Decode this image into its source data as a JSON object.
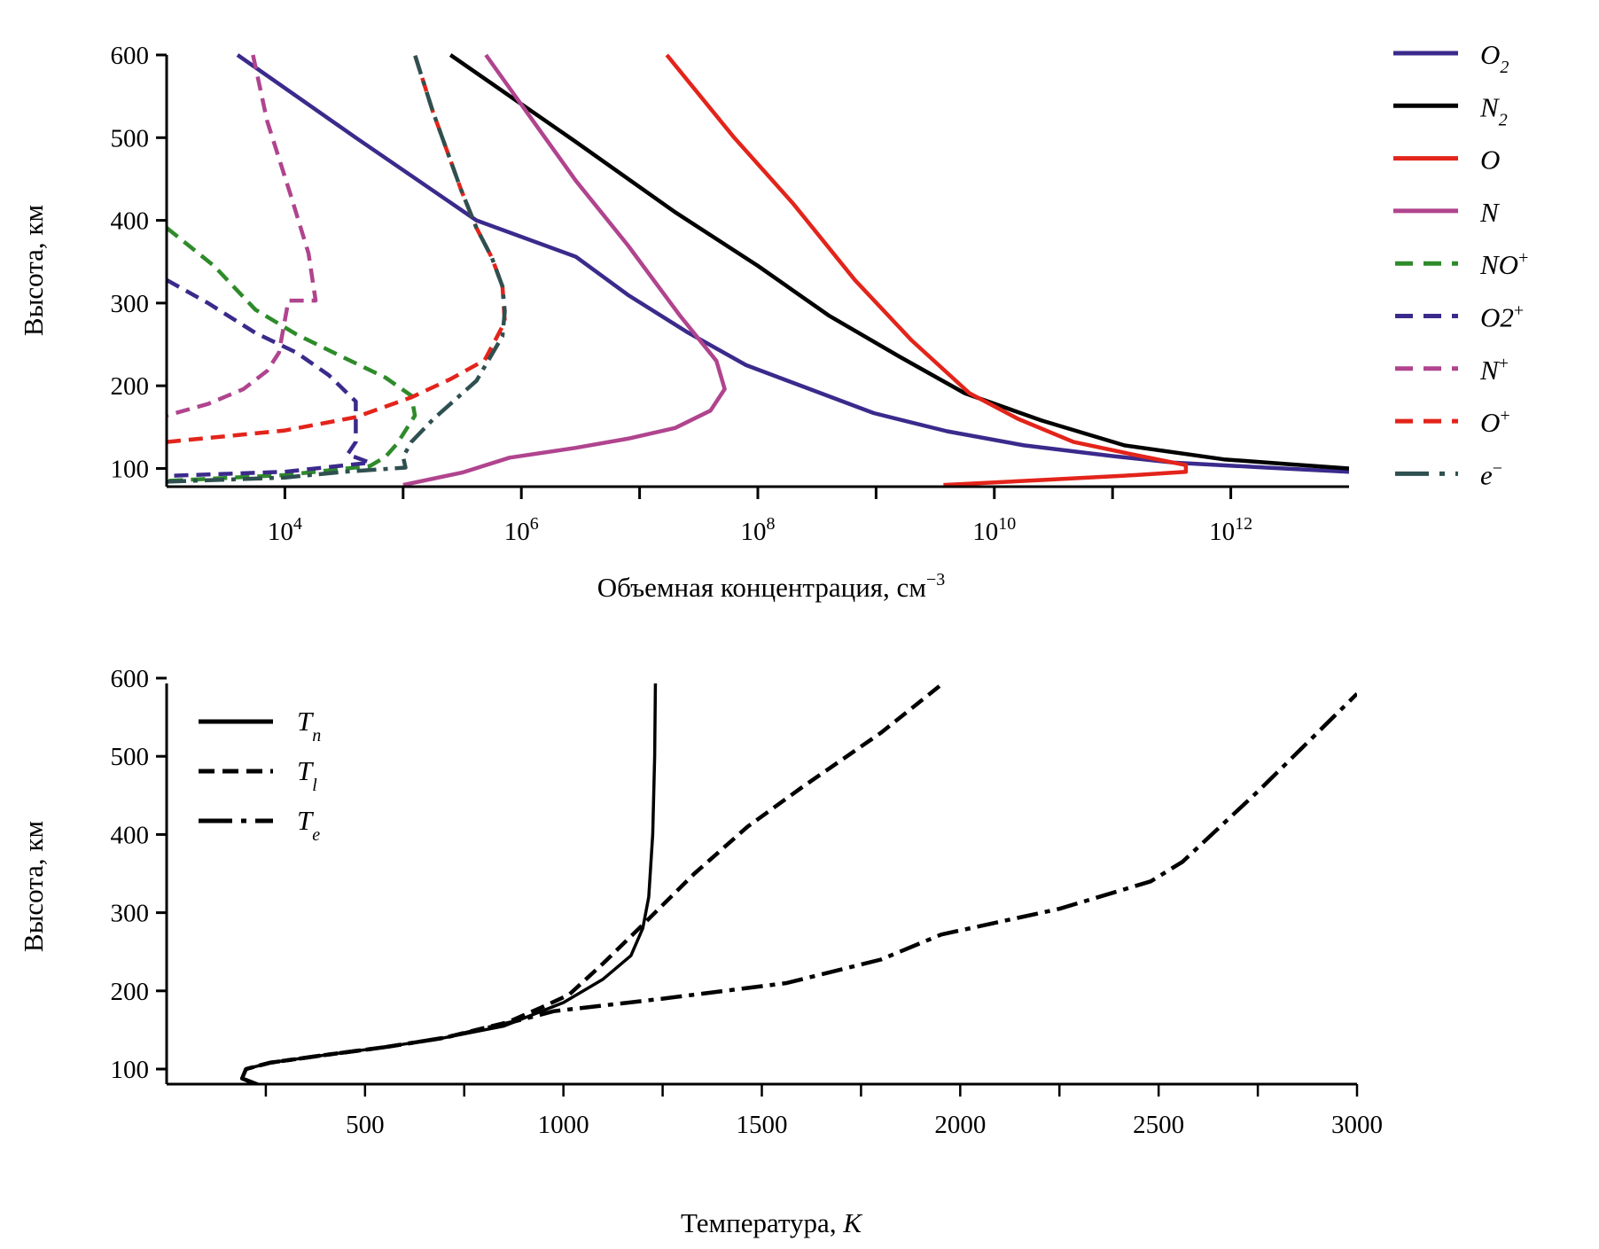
{
  "chart_data": [
    {
      "type": "line",
      "title": "",
      "xlabel": "Объемная концентрация, см",
      "xlabel_superscript": "−3",
      "ylabel": "Высота, км",
      "xscale": "log",
      "xlim": [
        1000,
        10000000000000.0
      ],
      "ylim": [
        78,
        600
      ],
      "xticks": [
        {
          "base": "10",
          "exp": "4",
          "value": 10000.0
        },
        {
          "base": "10",
          "exp": "6",
          "value": 1000000.0
        },
        {
          "base": "10",
          "exp": "8",
          "value": 100000000.0
        },
        {
          "base": "10",
          "exp": "10",
          "value": 10000000000.0
        },
        {
          "base": "10",
          "exp": "12",
          "value": 1000000000000.0
        }
      ],
      "xminor_ticks": [
        1000.0,
        100000.0,
        10000000.0,
        1000000000.0,
        100000000000.0,
        10000000000000.0
      ],
      "yticks": [
        "100",
        "200",
        "300",
        "400",
        "500",
        "600"
      ],
      "grid": false,
      "legend_position": "right-outside",
      "series": [
        {
          "name": "O2",
          "label": "O",
          "sub": "2",
          "sup": "",
          "color": "#3b2a8c",
          "dash": "solid",
          "points": [
            [
              3.6,
              600
            ],
            [
              4.6,
              500
            ],
            [
              5.62,
              400
            ],
            [
              6.46,
              356
            ],
            [
              6.9,
              310
            ],
            [
              7.4,
              265
            ],
            [
              7.9,
              225
            ],
            [
              8.98,
              167
            ],
            [
              9.6,
              145
            ],
            [
              10.25,
              128
            ],
            [
              11.0,
              115
            ],
            [
              11.52,
              107
            ],
            [
              12.3,
              101
            ],
            [
              13.0,
              96
            ]
          ]
        },
        {
          "name": "N2",
          "label": "N",
          "sub": "2",
          "sup": "",
          "color": "#000000",
          "dash": "solid",
          "points": [
            [
              5.4,
              600
            ],
            [
              6.46,
              495
            ],
            [
              7.3,
              410
            ],
            [
              8.0,
              345
            ],
            [
              8.6,
              285
            ],
            [
              9.2,
              235
            ],
            [
              9.75,
              191
            ],
            [
              10.4,
              158
            ],
            [
              11.1,
              128
            ],
            [
              11.94,
              111
            ],
            [
              12.5,
              105
            ],
            [
              13.0,
              100
            ]
          ]
        },
        {
          "name": "O",
          "label": "O",
          "sub": "",
          "sup": "",
          "color": "#e3241b",
          "dash": "solid",
          "points": [
            [
              7.23,
              600
            ],
            [
              7.8,
              500
            ],
            [
              8.3,
              420
            ],
            [
              8.82,
              328
            ],
            [
              9.3,
              255
            ],
            [
              9.79,
              191
            ],
            [
              10.2,
              160
            ],
            [
              10.67,
              132
            ],
            [
              11.2,
              116
            ],
            [
              11.62,
              104
            ],
            [
              11.62,
              96
            ],
            [
              11.2,
              92
            ],
            [
              10.4,
              86
            ],
            [
              9.57,
              80
            ]
          ]
        },
        {
          "name": "N",
          "label": "N",
          "sub": "",
          "sup": "",
          "color": "#b0448e",
          "dash": "solid",
          "points": [
            [
              5.7,
              600
            ],
            [
              6.0,
              540
            ],
            [
              6.46,
              448
            ],
            [
              6.9,
              370
            ],
            [
              7.34,
              285
            ],
            [
              7.65,
              230
            ],
            [
              7.72,
              196
            ],
            [
              7.6,
              170
            ],
            [
              7.3,
              149
            ],
            [
              6.9,
              136
            ],
            [
              6.46,
              125
            ],
            [
              5.9,
              113
            ],
            [
              5.5,
              95
            ],
            [
              5.0,
              80
            ]
          ]
        },
        {
          "name": "NO+",
          "label": "NO",
          "sub": "",
          "sup": "+",
          "color": "#2e8b2a",
          "dash": "dashed",
          "points": [
            [
              3.0,
              391
            ],
            [
              3.4,
              345
            ],
            [
              3.75,
              292
            ],
            [
              4.1,
              262
            ],
            [
              4.5,
              234
            ],
            [
              4.85,
              210
            ],
            [
              5.07,
              188
            ],
            [
              5.1,
              164
            ],
            [
              4.95,
              130
            ],
            [
              4.85,
              114
            ],
            [
              4.72,
              103
            ],
            [
              4.0,
              92
            ],
            [
              3.0,
              85
            ]
          ]
        },
        {
          "name": "O2+",
          "label": "O2",
          "sub": "",
          "sup": "+",
          "color": "#3b2a8c",
          "dash": "dashed",
          "points": [
            [
              3.0,
              328
            ],
            [
              3.35,
              300
            ],
            [
              3.75,
              264
            ],
            [
              4.1,
              240
            ],
            [
              4.37,
              213
            ],
            [
              4.6,
              181
            ],
            [
              4.6,
              167
            ],
            [
              4.6,
              132
            ],
            [
              4.53,
              117
            ],
            [
              4.72,
              107
            ],
            [
              4.0,
              96
            ],
            [
              3.0,
              91
            ]
          ]
        },
        {
          "name": "N+",
          "label": "N",
          "sub": "",
          "sup": "+",
          "color": "#b0448e",
          "dash": "dashed",
          "points": [
            [
              3.73,
              600
            ],
            [
              3.85,
              520
            ],
            [
              4.05,
              430
            ],
            [
              4.2,
              360
            ],
            [
              4.26,
              303
            ],
            [
              4.03,
              303
            ],
            [
              3.95,
              240
            ],
            [
              3.85,
              218
            ],
            [
              3.65,
              196
            ],
            [
              3.35,
              178
            ],
            [
              3.0,
              164
            ]
          ]
        },
        {
          "name": "O+",
          "label": "O",
          "sub": "",
          "sup": "+",
          "color": "#e3241b",
          "dash": "dashed",
          "points": [
            [
              3.0,
              132
            ],
            [
              4.0,
              146
            ],
            [
              4.6,
              162
            ],
            [
              5.07,
              186
            ],
            [
              5.4,
              208
            ],
            [
              5.69,
              231
            ],
            [
              5.86,
              277
            ],
            [
              5.84,
              320
            ],
            [
              5.75,
              355
            ],
            [
              5.62,
              391
            ],
            [
              5.49,
              437
            ],
            [
              5.25,
              532
            ],
            [
              5.1,
              600
            ]
          ]
        },
        {
          "name": "e-",
          "label": "e",
          "sub": "",
          "sup": "−",
          "color": "#2f5050",
          "dash": "dashdot",
          "points": [
            [
              3.0,
              84
            ],
            [
              4.0,
              89
            ],
            [
              4.5,
              96
            ],
            [
              5.02,
              101
            ],
            [
              5.0,
              114
            ],
            [
              5.07,
              132
            ],
            [
              5.25,
              159
            ],
            [
              5.62,
              206
            ],
            [
              5.84,
              260
            ],
            [
              5.86,
              290
            ],
            [
              5.84,
              320
            ],
            [
              5.75,
              355
            ],
            [
              5.62,
              391
            ],
            [
              5.49,
              437
            ],
            [
              5.25,
              532
            ],
            [
              5.1,
              600
            ]
          ]
        }
      ]
    },
    {
      "type": "line",
      "title": "",
      "xlabel": "Температура, ",
      "xlabel_italic": "K",
      "ylabel": "Высота, км",
      "xlim": [
        0,
        3000
      ],
      "ylim": [
        80,
        600
      ],
      "xticks": [
        "500",
        "1000",
        "1500",
        "2000",
        "2500",
        "3000"
      ],
      "xtick_values": [
        500,
        1000,
        1500,
        2000,
        2500,
        3000
      ],
      "xminor_ticks": [
        250,
        750,
        1250,
        1750,
        2250,
        2750
      ],
      "yticks": [
        "100",
        "200",
        "300",
        "400",
        "500",
        "600"
      ],
      "grid": false,
      "legend_position": "top-left",
      "series": [
        {
          "name": "Tn",
          "label": "T",
          "sub": "n",
          "color": "#000000",
          "dash": "solid",
          "points": [
            [
              230,
              80
            ],
            [
              190,
              88
            ],
            [
              200,
              100
            ],
            [
              260,
              108
            ],
            [
              400,
              118
            ],
            [
              550,
              128
            ],
            [
              700,
              140
            ],
            [
              850,
              155
            ],
            [
              1000,
              185
            ],
            [
              1100,
              215
            ],
            [
              1170,
              245
            ],
            [
              1200,
              280
            ],
            [
              1215,
              320
            ],
            [
              1225,
              400
            ],
            [
              1230,
              500
            ],
            [
              1232,
              600
            ]
          ]
        },
        {
          "name": "Ti",
          "label": "T",
          "sub": "l",
          "color": "#000000",
          "dash": "dashed",
          "points": [
            [
              230,
              80
            ],
            [
              190,
              88
            ],
            [
              200,
              100
            ],
            [
              260,
              108
            ],
            [
              400,
              118
            ],
            [
              550,
              128
            ],
            [
              700,
              140
            ],
            [
              860,
              160
            ],
            [
              950,
              180
            ],
            [
              1014,
              195
            ],
            [
              1100,
              235
            ],
            [
              1211,
              290
            ],
            [
              1330,
              350
            ],
            [
              1464,
              410
            ],
            [
              1600,
              460
            ],
            [
              1800,
              530
            ],
            [
              1973,
              600
            ]
          ]
        },
        {
          "name": "Te",
          "label": "T",
          "sub": "e",
          "color": "#000000",
          "dash": "dashdot",
          "points": [
            [
              230,
              80
            ],
            [
              190,
              88
            ],
            [
              200,
              100
            ],
            [
              260,
              108
            ],
            [
              400,
              118
            ],
            [
              550,
              128
            ],
            [
              700,
              140
            ],
            [
              870,
              160
            ],
            [
              976,
              174
            ],
            [
              1250,
              190
            ],
            [
              1562,
              210
            ],
            [
              1800,
              240
            ],
            [
              1952,
              272
            ],
            [
              2250,
              305
            ],
            [
              2480,
              340
            ],
            [
              2560,
              365
            ],
            [
              2750,
              455
            ],
            [
              3000,
              580
            ]
          ]
        }
      ]
    }
  ]
}
